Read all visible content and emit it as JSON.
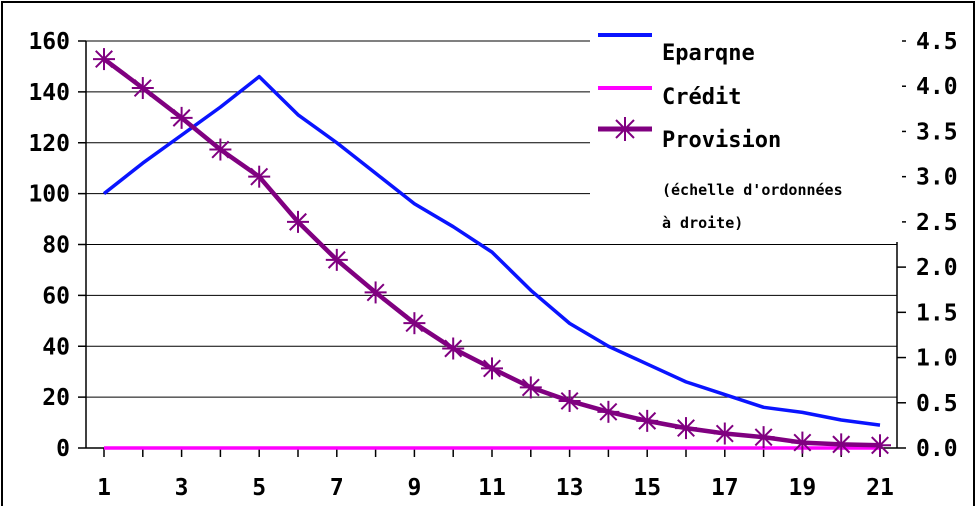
{
  "chart_data": {
    "type": "line",
    "x": [
      1,
      2,
      3,
      4,
      5,
      6,
      7,
      8,
      9,
      10,
      11,
      12,
      13,
      14,
      15,
      16,
      17,
      18,
      19,
      20,
      21
    ],
    "x_tick_labels": [
      "1",
      "3",
      "5",
      "7",
      "9",
      "11",
      "13",
      "15",
      "17",
      "19",
      "21"
    ],
    "y_left_tick_labels": [
      "0",
      "20",
      "40",
      "60",
      "80",
      "100",
      "120",
      "140",
      "160"
    ],
    "y_right_tick_labels": [
      "0.0",
      "0.5",
      "1.0",
      "1.5",
      "2.0",
      "2.5",
      "3.0",
      "3.5",
      "4.0",
      "4.5"
    ],
    "ylim_left": [
      0,
      160
    ],
    "ylim_right": [
      0,
      4.5
    ],
    "grid": "horizontal",
    "legend_position": "top-right",
    "series": [
      {
        "name": "Eparqne",
        "axis": "left",
        "color": "#0a14ff",
        "marker": "none",
        "values": [
          100,
          112,
          123,
          134,
          146,
          131,
          120,
          108,
          96,
          87,
          77,
          62,
          49,
          40,
          33,
          26,
          21,
          16,
          14,
          11,
          9
        ]
      },
      {
        "name": "Crédit",
        "axis": "left",
        "color": "#ff00ff",
        "marker": "none",
        "values": [
          0,
          0,
          0,
          0,
          0,
          0,
          0,
          0,
          0,
          0,
          0,
          0,
          0,
          0,
          0,
          0,
          0,
          0,
          0,
          0,
          0
        ]
      },
      {
        "name": "Provision",
        "axis": "right",
        "color": "#800080",
        "marker": "asterisk",
        "values": [
          4.3,
          3.98,
          3.65,
          3.3,
          3.0,
          2.5,
          2.08,
          1.72,
          1.38,
          1.1,
          0.88,
          0.67,
          0.52,
          0.4,
          0.3,
          0.22,
          0.16,
          0.12,
          0.06,
          0.04,
          0.03
        ]
      }
    ],
    "annotation_lines": [
      "(échelle d'ordonnées",
      "à droite)"
    ]
  }
}
